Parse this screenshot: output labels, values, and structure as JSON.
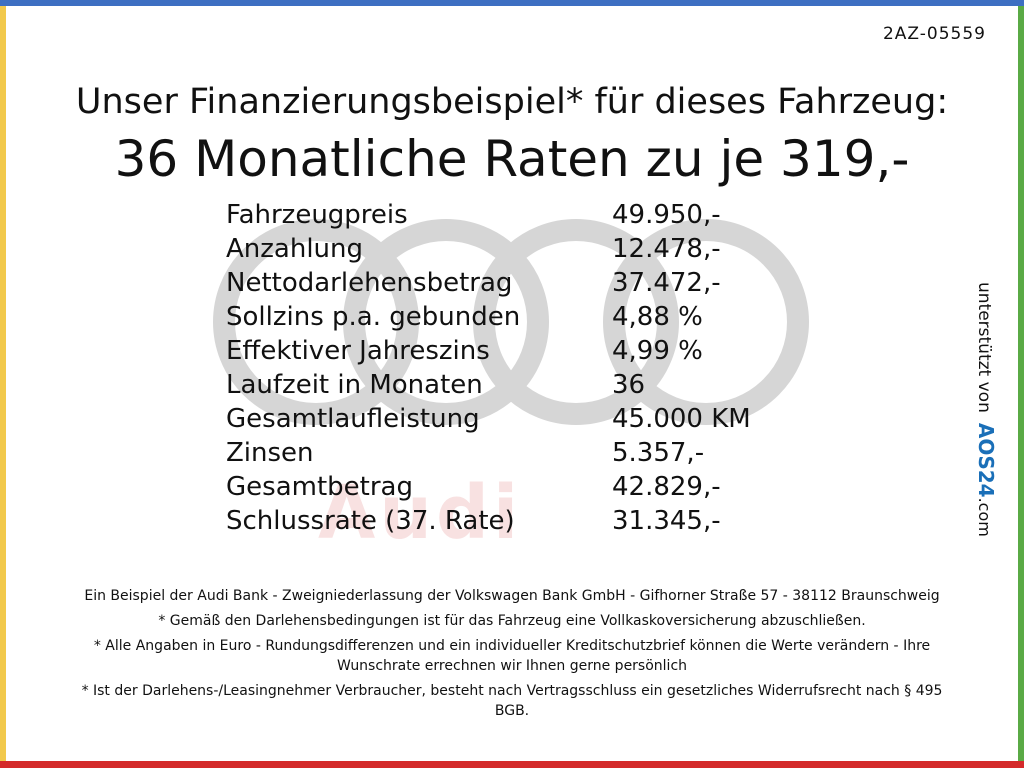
{
  "header": {
    "id": "2AZ-05559",
    "title": "Unser Finanzierungsbeispiel* für dieses Fahrzeug:",
    "subtitle": "36 Monatliche Raten zu je 319,-"
  },
  "table": {
    "rows": [
      [
        "Fahrzeugpreis",
        "49.950,-"
      ],
      [
        "Anzahlung",
        "12.478,-"
      ],
      [
        "Nettodarlehensbetrag",
        "37.472,-"
      ],
      [
        "Sollzins p.a. gebunden",
        "4,88 %"
      ],
      [
        "Effektiver Jahreszins",
        "4,99 %"
      ],
      [
        "Laufzeit in Monaten",
        "36"
      ],
      [
        "Gesamtlaufleistung",
        "45.000 KM"
      ],
      [
        "Zinsen",
        "5.357,-"
      ],
      [
        "Gesamtbetrag",
        "42.829,-"
      ],
      [
        "Schlussrate (37. Rate)",
        "31.345,-"
      ]
    ]
  },
  "watermark": "Audi",
  "sponsor": {
    "label": "unterstützt von",
    "brand": "AOS24",
    "suffix": ".com"
  },
  "footer": [
    "Ein Beispiel der Audi Bank -  Zweigniederlassung der Volkswagen Bank GmbH - Gifhorner Straße 57 - 38112 Braunschweig",
    "* Gemäß den Darlehensbedingungen ist für das Fahrzeug eine Vollkaskoversicherung abzuschließen.",
    "* Alle Angaben in Euro - Rundungsdifferenzen und ein individueller Kreditschutzbrief können die Werte verändern - Ihre Wunschrate errechnen wir Ihnen gerne persönlich",
    "* Ist der Darlehens-/Leasingnehmer Verbraucher, besteht nach Vertragsschluss ein gesetzliches Widerrufsrecht nach § 495 BGB."
  ]
}
